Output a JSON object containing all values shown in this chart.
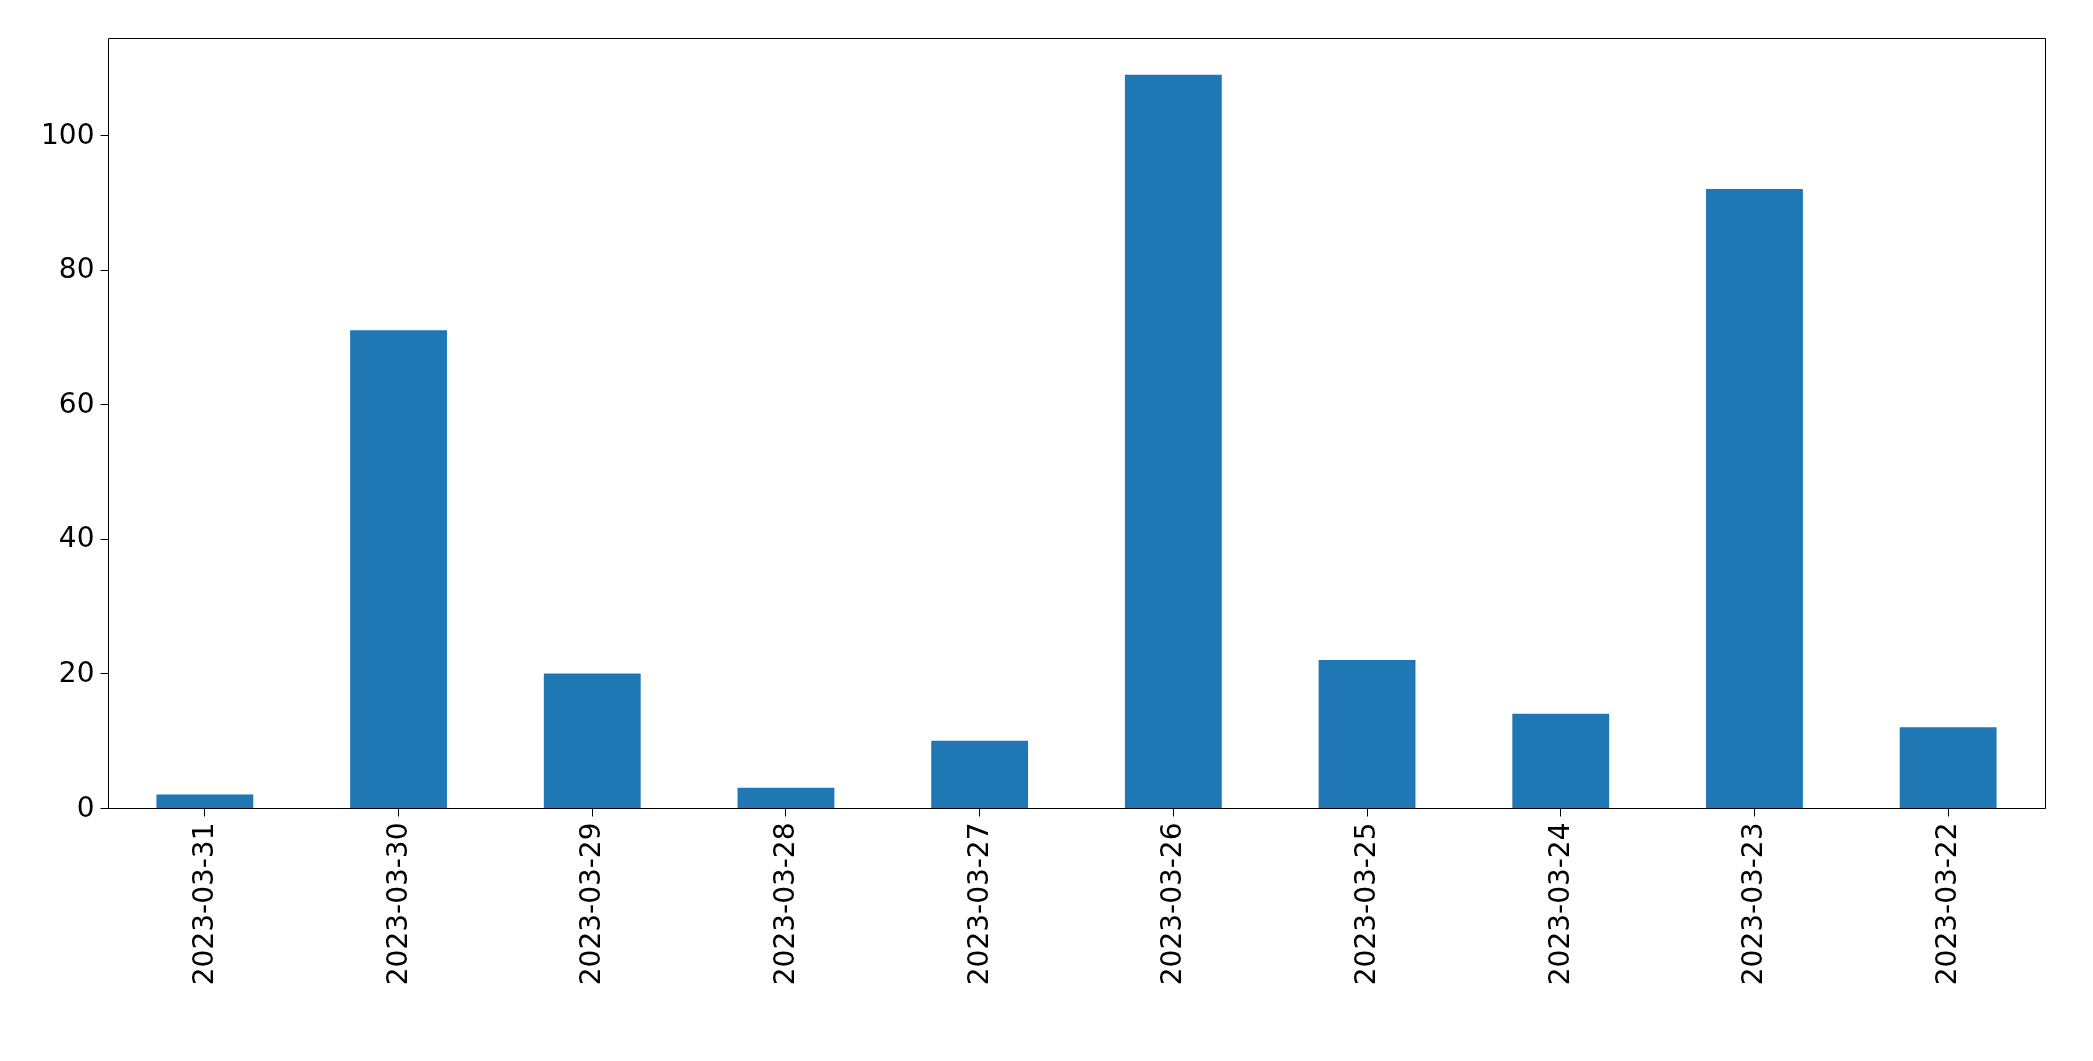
{
  "chart_data": {
    "type": "bar",
    "categories": [
      "2023-03-31",
      "2023-03-30",
      "2023-03-29",
      "2023-03-28",
      "2023-03-27",
      "2023-03-26",
      "2023-03-25",
      "2023-03-24",
      "2023-03-23",
      "2023-03-22"
    ],
    "values": [
      2,
      71,
      20,
      3,
      10,
      109,
      22,
      14,
      92,
      12
    ],
    "color": "#1f77b4",
    "ylim": [
      0,
      114.45
    ],
    "yticks": [
      0,
      20,
      40,
      60,
      80,
      100
    ],
    "grid": false
  }
}
